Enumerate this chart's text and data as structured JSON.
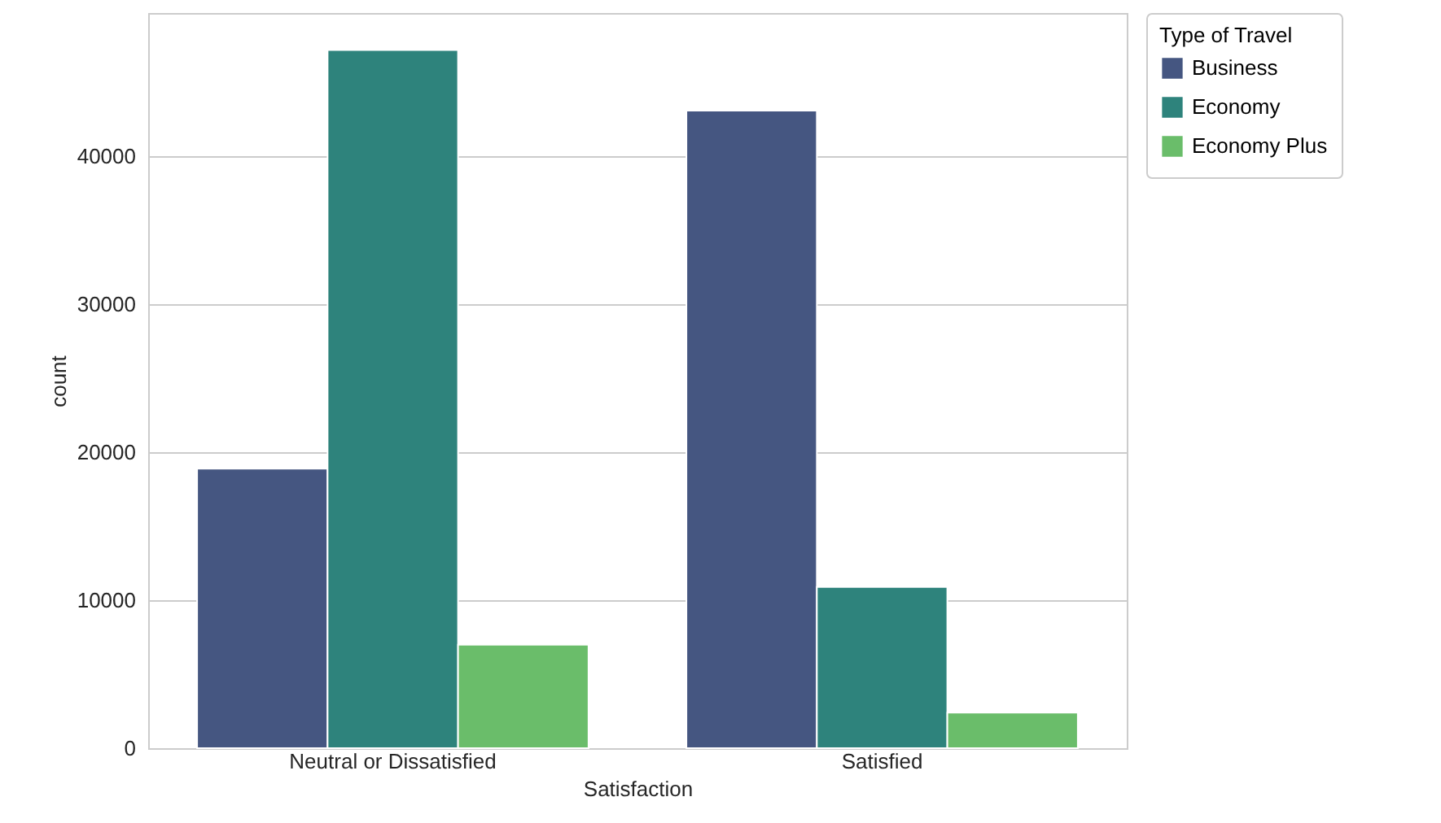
{
  "chart_data": {
    "type": "bar",
    "xlabel": "Satisfaction",
    "ylabel": "count",
    "legend_title": "Type of Travel",
    "categories": [
      "Neutral or Dissatisfied",
      "Satisfied"
    ],
    "series": [
      {
        "name": "Business",
        "color": "#455681",
        "values": [
          18900,
          43100
        ]
      },
      {
        "name": "Economy",
        "color": "#2e837c",
        "values": [
          47200,
          10900
        ]
      },
      {
        "name": "Economy Plus",
        "color": "#6abd6a",
        "values": [
          7000,
          2400
        ]
      }
    ],
    "ylim": [
      0,
      49700
    ],
    "yticks": [
      0,
      10000,
      20000,
      30000,
      40000
    ],
    "grid": "y",
    "legend": "top right"
  }
}
